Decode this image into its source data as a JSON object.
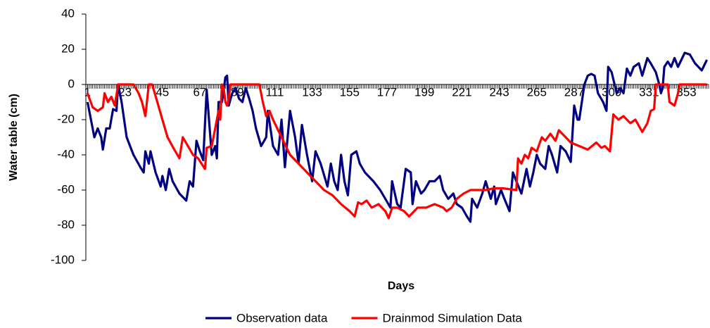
{
  "chart_data": {
    "type": "line",
    "y_label": "Water table (cm)",
    "x_label": "Days",
    "xlim": [
      0,
      366
    ],
    "xticks": [
      1,
      23,
      45,
      67,
      89,
      111,
      133,
      155,
      177,
      199,
      221,
      243,
      265,
      287,
      309,
      331,
      353
    ],
    "ylim": [
      -100,
      40
    ],
    "yticks": [
      -100,
      -80,
      -60,
      -40,
      -20,
      0,
      20,
      40
    ],
    "legend": "bottom",
    "series": [
      {
        "name": "Observation data",
        "color": "#000080",
        "x": [
          1,
          5,
          7,
          9,
          10,
          12,
          14,
          16,
          18,
          19,
          21,
          24,
          28,
          32,
          34,
          35,
          37,
          38,
          41,
          44,
          45,
          47,
          49,
          51,
          55,
          59,
          61,
          63,
          65,
          67,
          69,
          71,
          74,
          76,
          77,
          78,
          80,
          82,
          83,
          84,
          86,
          88,
          90,
          92,
          94,
          96,
          98,
          100,
          103,
          106,
          107,
          110,
          113,
          115,
          117,
          120,
          123,
          125,
          127,
          130,
          133,
          135,
          138,
          142,
          144,
          146,
          148,
          150,
          152,
          154,
          156,
          159,
          161,
          164,
          169,
          173,
          176,
          179,
          180,
          183,
          185,
          188,
          191,
          192,
          194,
          197,
          199,
          202,
          205,
          208,
          210,
          213,
          216,
          218,
          221,
          224,
          226,
          227,
          230,
          233,
          235,
          238,
          240,
          241,
          244,
          246,
          249,
          251,
          253,
          256,
          259,
          261,
          263,
          265,
          267,
          270,
          272,
          274,
          277,
          279,
          282,
          285,
          287,
          289,
          290,
          293,
          295,
          297,
          299,
          301,
          304,
          306,
          307,
          309,
          312,
          314,
          316,
          318,
          320,
          322,
          325,
          327,
          330,
          332,
          335,
          337,
          338,
          339,
          340,
          342,
          344,
          346,
          348,
          352,
          355,
          358,
          362,
          365
        ],
        "values": [
          -10,
          -30,
          -25,
          -30,
          -37,
          -25,
          -25,
          -14,
          -15,
          0,
          -10,
          -30,
          -40,
          -47,
          -50,
          -38,
          -45,
          -38,
          -50,
          -58,
          -52,
          -60,
          -48,
          -55,
          -62,
          -66,
          -55,
          -58,
          -32,
          -38,
          -43,
          -3,
          -40,
          -35,
          -42,
          -10,
          -10,
          4,
          5,
          -12,
          -5,
          -2,
          -8,
          -10,
          -2,
          -8,
          -15,
          -25,
          -35,
          -30,
          -15,
          -35,
          -40,
          -20,
          -47,
          -15,
          -30,
          -45,
          -23,
          -40,
          -55,
          -38,
          -45,
          -58,
          -45,
          -55,
          -60,
          -40,
          -55,
          -63,
          -40,
          -38,
          -45,
          -50,
          -55,
          -60,
          -65,
          -70,
          -55,
          -68,
          -70,
          -48,
          -50,
          -68,
          -55,
          -62,
          -60,
          -55,
          -55,
          -52,
          -60,
          -65,
          -62,
          -68,
          -70,
          -75,
          -78,
          -65,
          -70,
          -62,
          -55,
          -65,
          -58,
          -68,
          -60,
          -65,
          -72,
          -50,
          -55,
          -62,
          -48,
          -58,
          -50,
          -40,
          -45,
          -48,
          -35,
          -40,
          -50,
          -35,
          -38,
          -44,
          -12,
          -20,
          -20,
          0,
          5,
          6,
          5,
          -5,
          -10,
          -15,
          10,
          7,
          -5,
          -2,
          -5,
          9,
          5,
          10,
          12,
          5,
          15,
          12,
          7,
          0,
          -5,
          -2,
          10,
          13,
          10,
          15,
          10,
          18,
          17,
          12,
          8,
          14
        ]
      },
      {
        "name": "Drainmod Simulation Data",
        "color": "#ff0000",
        "x": [
          1,
          4,
          7,
          10,
          11,
          13,
          15,
          17,
          19,
          28,
          31,
          33,
          35,
          37,
          39,
          42,
          45,
          48,
          52,
          55,
          57,
          60,
          63,
          66,
          68,
          70,
          71,
          74,
          76,
          78,
          79,
          80,
          81,
          82,
          83,
          84,
          85,
          102,
          104,
          106,
          108,
          110,
          115,
          120,
          125,
          130,
          135,
          140,
          145,
          150,
          155,
          158,
          160,
          162,
          165,
          168,
          172,
          176,
          178,
          180,
          183,
          187,
          190,
          192,
          195,
          200,
          205,
          210,
          212,
          215,
          218,
          222,
          226,
          235,
          240,
          245,
          253,
          254,
          256,
          258,
          260,
          262,
          265,
          268,
          270,
          273,
          276,
          278,
          282,
          285,
          290,
          295,
          300,
          303,
          305,
          308,
          310,
          313,
          316,
          320,
          323,
          327,
          330,
          332,
          334,
          335,
          342,
          343,
          346,
          348,
          349,
          365
        ],
        "values": [
          -5,
          -13,
          -15,
          -13,
          -5,
          -10,
          -7,
          -12,
          0,
          0,
          -5,
          -10,
          -18,
          0,
          0,
          -10,
          -20,
          -30,
          -37,
          -42,
          -30,
          -35,
          -40,
          -42,
          -45,
          -48,
          -36,
          -35,
          -25,
          -15,
          -20,
          0,
          -2,
          -10,
          -12,
          -8,
          0,
          0,
          -10,
          -18,
          -15,
          -20,
          -30,
          -40,
          -45,
          -50,
          -55,
          -60,
          -63,
          -68,
          -72,
          -75,
          -67,
          -68,
          -66,
          -70,
          -68,
          -72,
          -76,
          -70,
          -70,
          -72,
          -75,
          -73,
          -70,
          -70,
          -68,
          -70,
          -72,
          -70,
          -65,
          -62,
          -60,
          -60,
          -59,
          -59,
          -60,
          -42,
          -45,
          -40,
          -42,
          -36,
          -38,
          -30,
          -32,
          -28,
          -32,
          -26,
          -30,
          -33,
          -35,
          -37,
          -33,
          -36,
          -35,
          -38,
          -17,
          -20,
          -18,
          -22,
          -20,
          -27,
          -22,
          -15,
          -14,
          0,
          0,
          -10,
          -12,
          -5,
          0,
          0
        ]
      }
    ]
  }
}
